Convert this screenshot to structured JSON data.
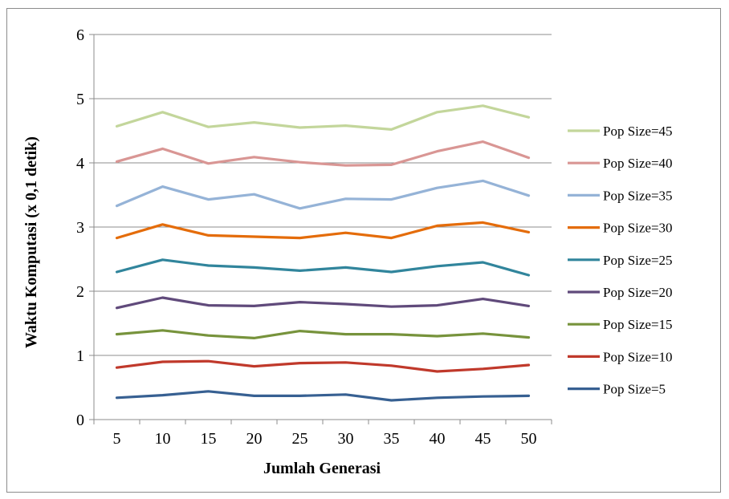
{
  "chart_data": {
    "type": "line",
    "title": "",
    "xlabel": "Jumlah Generasi",
    "ylabel": "Waktu Komputasi (x 0,1 detik)",
    "categories": [
      "5",
      "10",
      "15",
      "20",
      "25",
      "30",
      "35",
      "40",
      "45",
      "50"
    ],
    "ylim": [
      0,
      6
    ],
    "yticks": [
      "0",
      "1",
      "2",
      "3",
      "4",
      "5",
      "6"
    ],
    "grid": true,
    "legend_position": "right",
    "series": [
      {
        "name": "Pop Size=45",
        "color": "#c3d69b",
        "values": [
          4.57,
          4.79,
          4.56,
          4.63,
          4.55,
          4.58,
          4.52,
          4.79,
          4.89,
          4.71
        ]
      },
      {
        "name": "Pop Size=40",
        "color": "#d99694",
        "values": [
          4.02,
          4.22,
          3.99,
          4.09,
          4.01,
          3.96,
          3.97,
          4.18,
          4.33,
          4.08
        ]
      },
      {
        "name": "Pop Size=35",
        "color": "#95b3d7",
        "values": [
          3.33,
          3.63,
          3.43,
          3.51,
          3.29,
          3.44,
          3.43,
          3.61,
          3.72,
          3.49
        ]
      },
      {
        "name": "Pop Size=30",
        "color": "#e46c0a",
        "values": [
          2.83,
          3.04,
          2.87,
          2.85,
          2.83,
          2.91,
          2.83,
          3.02,
          3.07,
          2.92
        ]
      },
      {
        "name": "Pop Size=25",
        "color": "#31859c",
        "values": [
          2.3,
          2.49,
          2.4,
          2.37,
          2.32,
          2.37,
          2.3,
          2.39,
          2.45,
          2.25
        ]
      },
      {
        "name": "Pop Size=20",
        "color": "#604a7b",
        "values": [
          1.74,
          1.9,
          1.78,
          1.77,
          1.83,
          1.8,
          1.76,
          1.78,
          1.88,
          1.77
        ]
      },
      {
        "name": "Pop Size=15",
        "color": "#77933c",
        "values": [
          1.33,
          1.39,
          1.31,
          1.27,
          1.38,
          1.33,
          1.33,
          1.3,
          1.34,
          1.28
        ]
      },
      {
        "name": "Pop Size=10",
        "color": "#c0392b",
        "values": [
          0.81,
          0.9,
          0.91,
          0.83,
          0.88,
          0.89,
          0.84,
          0.75,
          0.79,
          0.85
        ]
      },
      {
        "name": "Pop Size=5",
        "color": "#376092",
        "values": [
          0.34,
          0.38,
          0.44,
          0.37,
          0.37,
          0.39,
          0.3,
          0.34,
          0.36,
          0.37
        ]
      }
    ]
  }
}
